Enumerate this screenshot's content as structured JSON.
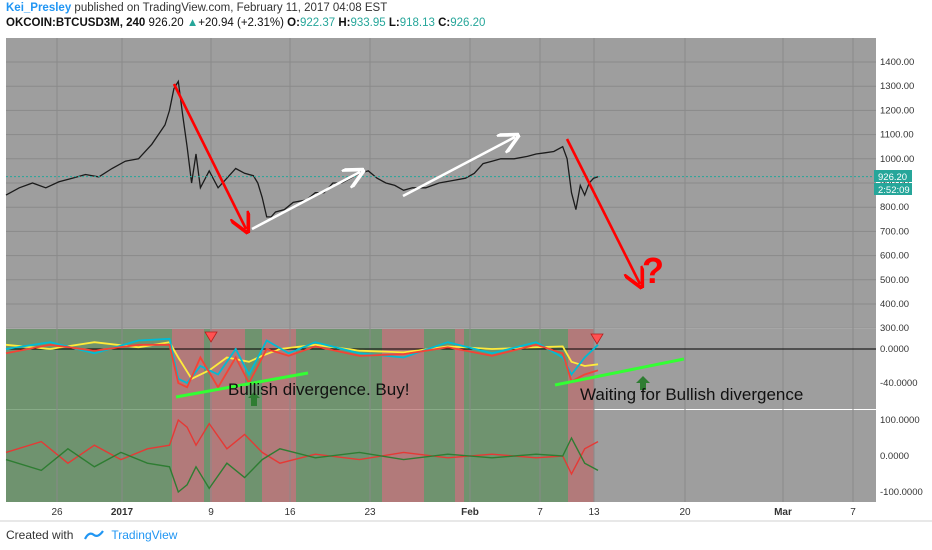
{
  "header": {
    "author": "Kei_Presley",
    "published_text": "published on TradingView.com, February 11, 2017 04:08 EST",
    "symbol": "OKCOIN:BTCUSD3M, 240",
    "last": "926.20",
    "change": "+20.94 (+2.31%)",
    "o_label": "O:",
    "o_value": "922.37",
    "h_label": "H:",
    "h_value": "933.95",
    "l_label": "L:",
    "l_value": "918.13",
    "c_label": "C:",
    "c_value": "926.20"
  },
  "footer": {
    "created_with": "Created with",
    "brand": "TradingView"
  },
  "colors": {
    "background": "#9e9e9e",
    "up": "#2e7d32",
    "down": "#e53935",
    "arrow_red": "#ff0000",
    "arrow_white": "#ffffff",
    "divergence": "#33ff33",
    "price_tag": "#26a69a"
  },
  "chart_data": {
    "type": "line",
    "price_axis": {
      "ticks": [
        "1400.00",
        "1300.00",
        "1200.00",
        "1100.00",
        "1000.00",
        "900.00",
        "800.00",
        "700.00",
        "600.00",
        "500.00",
        "400.00",
        "300.00"
      ],
      "ylim": [
        300,
        1450
      ]
    },
    "price_tag": "926.20",
    "countdown_tag": "2:52:09",
    "osc1_axis": {
      "ticks": [
        "0.0000",
        "-40.0000"
      ]
    },
    "osc2_axis": {
      "ticks": [
        "100.0000",
        "0.0000",
        "-100.0000"
      ]
    },
    "x_ticks": [
      "26",
      "2017",
      "9",
      "16",
      "23",
      "Feb",
      "7",
      "13",
      "20",
      "Mar",
      "7"
    ],
    "price_series": [
      [
        0,
        850
      ],
      [
        3,
        880
      ],
      [
        6,
        900
      ],
      [
        9,
        880
      ],
      [
        12,
        905
      ],
      [
        15,
        920
      ],
      [
        18,
        935
      ],
      [
        21,
        925
      ],
      [
        24,
        960
      ],
      [
        27,
        990
      ],
      [
        30,
        1000
      ],
      [
        33,
        1060
      ],
      [
        36,
        1140
      ],
      [
        37,
        1200
      ],
      [
        38,
        1290
      ],
      [
        39,
        1320
      ],
      [
        40,
        1180
      ],
      [
        41,
        1050
      ],
      [
        42,
        900
      ],
      [
        43,
        1020
      ],
      [
        44,
        880
      ],
      [
        46,
        950
      ],
      [
        48,
        880
      ],
      [
        50,
        920
      ],
      [
        52,
        960
      ],
      [
        54,
        940
      ],
      [
        56,
        930
      ],
      [
        57,
        900
      ],
      [
        58,
        840
      ],
      [
        59,
        760
      ],
      [
        60,
        760
      ],
      [
        61,
        780
      ],
      [
        63,
        790
      ],
      [
        65,
        820
      ],
      [
        68,
        830
      ],
      [
        70,
        860
      ],
      [
        72,
        860
      ],
      [
        74,
        900
      ],
      [
        76,
        900
      ],
      [
        78,
        920
      ],
      [
        80,
        940
      ],
      [
        82,
        950
      ],
      [
        84,
        920
      ],
      [
        86,
        900
      ],
      [
        88,
        890
      ],
      [
        90,
        870
      ],
      [
        92,
        880
      ],
      [
        95,
        880
      ],
      [
        98,
        900
      ],
      [
        101,
        910
      ],
      [
        104,
        920
      ],
      [
        106,
        940
      ],
      [
        108,
        980
      ],
      [
        110,
        990
      ],
      [
        112,
        1000
      ],
      [
        115,
        1000
      ],
      [
        118,
        1010
      ],
      [
        120,
        1020
      ],
      [
        122,
        1025
      ],
      [
        124,
        1030
      ],
      [
        126,
        1050
      ],
      [
        127,
        1000
      ],
      [
        128,
        860
      ],
      [
        129,
        790
      ],
      [
        130,
        890
      ],
      [
        131,
        850
      ],
      [
        132,
        900
      ],
      [
        133,
        920
      ],
      [
        134,
        926
      ]
    ],
    "osc1_series": [
      {
        "name": "",
        "color": "#ffeb3b",
        "values": [
          [
            0,
            5
          ],
          [
            10,
            0
          ],
          [
            20,
            8
          ],
          [
            30,
            2
          ],
          [
            37,
            8
          ],
          [
            39,
            -10
          ],
          [
            42,
            -35
          ],
          [
            46,
            -25
          ],
          [
            50,
            -10
          ],
          [
            55,
            -15
          ],
          [
            58,
            -8
          ],
          [
            62,
            0
          ],
          [
            70,
            5
          ],
          [
            80,
            -2
          ],
          [
            90,
            -4
          ],
          [
            100,
            3
          ],
          [
            110,
            0
          ],
          [
            120,
            2
          ],
          [
            126,
            3
          ],
          [
            128,
            -15
          ],
          [
            131,
            -20
          ],
          [
            134,
            -18
          ]
        ]
      },
      {
        "name": "",
        "color": "#00bcd4",
        "values": [
          [
            0,
            0
          ],
          [
            10,
            8
          ],
          [
            20,
            -5
          ],
          [
            30,
            10
          ],
          [
            37,
            12
          ],
          [
            39,
            -35
          ],
          [
            41,
            -40
          ],
          [
            44,
            -20
          ],
          [
            48,
            -30
          ],
          [
            52,
            0
          ],
          [
            55,
            -30
          ],
          [
            59,
            10
          ],
          [
            64,
            -5
          ],
          [
            70,
            8
          ],
          [
            80,
            -5
          ],
          [
            90,
            -10
          ],
          [
            100,
            8
          ],
          [
            110,
            -5
          ],
          [
            120,
            8
          ],
          [
            126,
            -10
          ],
          [
            128,
            -30
          ],
          [
            131,
            -10
          ],
          [
            134,
            5
          ]
        ]
      },
      {
        "name": "",
        "color": "#f44336",
        "values": [
          [
            0,
            -5
          ],
          [
            10,
            5
          ],
          [
            20,
            -2
          ],
          [
            30,
            5
          ],
          [
            37,
            5
          ],
          [
            39,
            -40
          ],
          [
            41,
            -45
          ],
          [
            44,
            -10
          ],
          [
            48,
            -45
          ],
          [
            52,
            -10
          ],
          [
            55,
            -40
          ],
          [
            59,
            0
          ],
          [
            64,
            -8
          ],
          [
            70,
            3
          ],
          [
            80,
            -8
          ],
          [
            90,
            -6
          ],
          [
            100,
            2
          ],
          [
            110,
            -8
          ],
          [
            120,
            5
          ],
          [
            126,
            -5
          ],
          [
            128,
            -38
          ],
          [
            131,
            -30
          ],
          [
            134,
            -25
          ]
        ]
      }
    ],
    "osc2_series": [
      {
        "name": "",
        "color": "#e53935",
        "values": [
          [
            0,
            10
          ],
          [
            8,
            40
          ],
          [
            14,
            -20
          ],
          [
            20,
            30
          ],
          [
            26,
            -10
          ],
          [
            32,
            20
          ],
          [
            37,
            30
          ],
          [
            39,
            100
          ],
          [
            41,
            80
          ],
          [
            43,
            30
          ],
          [
            46,
            90
          ],
          [
            50,
            20
          ],
          [
            54,
            60
          ],
          [
            58,
            10
          ],
          [
            62,
            -20
          ],
          [
            70,
            5
          ],
          [
            80,
            -10
          ],
          [
            90,
            10
          ],
          [
            100,
            -5
          ],
          [
            110,
            5
          ],
          [
            120,
            -5
          ],
          [
            126,
            0
          ],
          [
            128,
            -50
          ],
          [
            131,
            20
          ],
          [
            134,
            40
          ]
        ]
      },
      {
        "name": "",
        "color": "#2e7d32",
        "values": [
          [
            0,
            -10
          ],
          [
            8,
            -40
          ],
          [
            14,
            20
          ],
          [
            20,
            -30
          ],
          [
            26,
            10
          ],
          [
            32,
            -20
          ],
          [
            37,
            -30
          ],
          [
            39,
            -100
          ],
          [
            41,
            -80
          ],
          [
            43,
            -30
          ],
          [
            46,
            -90
          ],
          [
            50,
            -20
          ],
          [
            54,
            -60
          ],
          [
            58,
            -10
          ],
          [
            62,
            20
          ],
          [
            70,
            -5
          ],
          [
            80,
            10
          ],
          [
            90,
            -10
          ],
          [
            100,
            5
          ],
          [
            110,
            -5
          ],
          [
            120,
            5
          ],
          [
            126,
            0
          ],
          [
            128,
            50
          ],
          [
            131,
            -20
          ],
          [
            134,
            -40
          ]
        ]
      }
    ],
    "annotations": [
      {
        "text": "Bullish divergence. Buy!"
      },
      {
        "text": "Waiting for Bullish divergence"
      },
      {
        "text": "?"
      }
    ]
  }
}
